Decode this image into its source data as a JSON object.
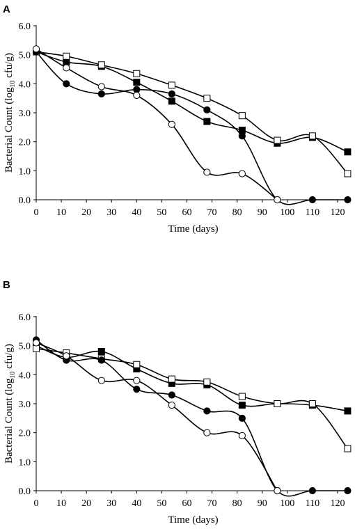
{
  "chart_data": [
    {
      "type": "line",
      "panel": "A",
      "xlabel": "Time (days)",
      "ylabel": {
        "prefix": "Bacterial Count (log",
        "sub": "10",
        "suffix": " cfu/g)"
      },
      "xlim": [
        0,
        125
      ],
      "ylim": [
        0,
        6
      ],
      "xticks": [
        "0",
        "10",
        "20",
        "30",
        "40",
        "50",
        "60",
        "70",
        "80",
        "90",
        "100",
        "110",
        "120"
      ],
      "yticks": [
        "0.0",
        "1.0",
        "2.0",
        "3.0",
        "4.0",
        "5.0",
        "6.0"
      ],
      "grid": false,
      "legend": "none",
      "x": [
        0,
        12,
        26,
        40,
        54,
        68,
        82,
        96,
        110,
        124
      ],
      "series": [
        {
          "marker": "filled-square",
          "values": [
            5.1,
            4.75,
            4.6,
            4.05,
            3.4,
            2.7,
            2.4,
            1.95,
            2.15,
            1.65
          ]
        },
        {
          "marker": "open-square",
          "values": [
            5.1,
            4.95,
            4.65,
            4.35,
            3.95,
            3.5,
            2.9,
            2.05,
            2.2,
            0.9
          ]
        },
        {
          "marker": "filled-circle",
          "values": [
            5.1,
            4.0,
            3.65,
            3.8,
            3.65,
            3.1,
            2.2,
            0.0,
            0.0,
            0.0
          ]
        },
        {
          "marker": "open-circle",
          "values": [
            5.2,
            4.55,
            3.9,
            3.6,
            2.6,
            0.95,
            0.9,
            0.0,
            null,
            null
          ]
        }
      ]
    },
    {
      "type": "line",
      "panel": "B",
      "xlabel": "Time (days)",
      "ylabel": {
        "prefix": "Bacterial Count (log",
        "sub": "10",
        "suffix": " cfu/g)"
      },
      "xlim": [
        0,
        125
      ],
      "ylim": [
        0,
        6
      ],
      "xticks": [
        "0",
        "10",
        "20",
        "30",
        "40",
        "50",
        "60",
        "70",
        "80",
        "90",
        "100",
        "110",
        "120"
      ],
      "yticks": [
        "0.0",
        "1.0",
        "2.0",
        "3.0",
        "4.0",
        "5.0",
        "6.0"
      ],
      "grid": false,
      "legend": "none",
      "x": [
        0,
        12,
        26,
        40,
        54,
        68,
        82,
        96,
        110,
        124
      ],
      "series": [
        {
          "marker": "filled-square",
          "values": [
            5.0,
            4.6,
            4.8,
            4.2,
            3.7,
            3.65,
            2.95,
            3.0,
            2.95,
            2.75
          ]
        },
        {
          "marker": "open-square",
          "values": [
            4.9,
            4.75,
            4.55,
            4.35,
            3.85,
            3.75,
            3.25,
            3.0,
            3.0,
            1.45
          ]
        },
        {
          "marker": "filled-circle",
          "values": [
            5.2,
            4.5,
            4.5,
            3.5,
            3.3,
            2.75,
            2.5,
            0.0,
            0.0,
            0.0
          ]
        },
        {
          "marker": "open-circle",
          "values": [
            5.1,
            4.65,
            3.8,
            3.8,
            2.95,
            2.0,
            1.9,
            0.0,
            null,
            null
          ]
        }
      ]
    }
  ]
}
